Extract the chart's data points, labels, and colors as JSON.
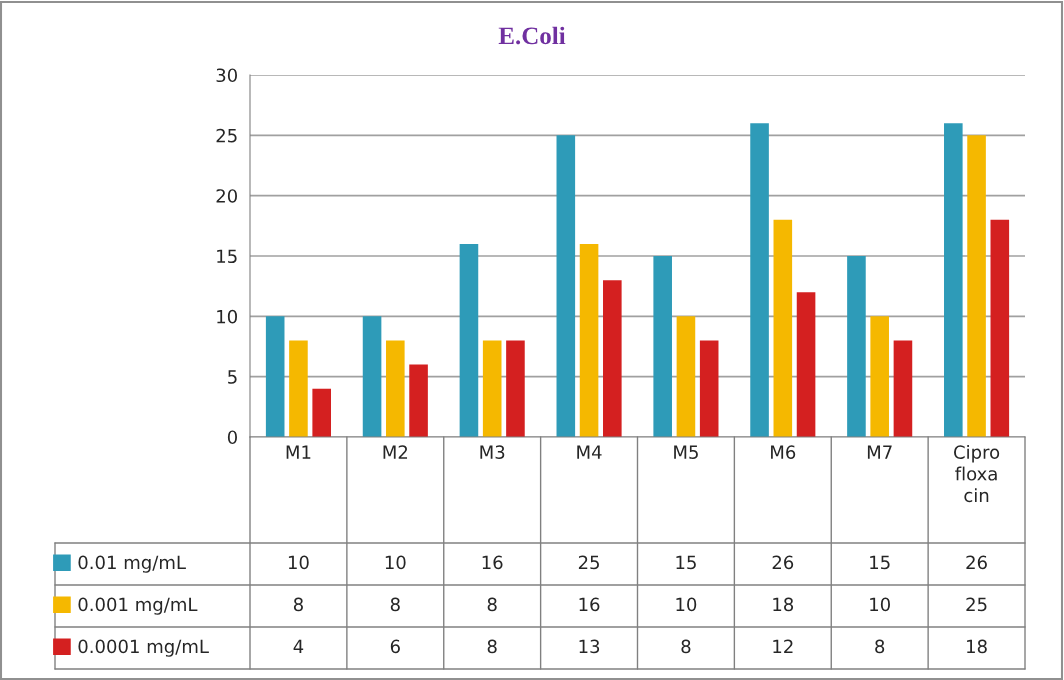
{
  "chart_data": {
    "type": "bar",
    "title": "E.Coli",
    "categories": [
      "M1",
      "M2",
      "M3",
      "M4",
      "M5",
      "M6",
      "M7",
      "Cipro floxa cin"
    ],
    "series": [
      {
        "name": "0.01 mg/mL",
        "color": "#2e9bb8",
        "values": [
          10,
          10,
          16,
          25,
          15,
          26,
          15,
          26
        ]
      },
      {
        "name": "0.001 mg/mL",
        "color": "#f5b800",
        "values": [
          8,
          8,
          8,
          16,
          10,
          18,
          10,
          25
        ]
      },
      {
        "name": "0.0001 mg/mL",
        "color": "#d42020",
        "values": [
          4,
          6,
          8,
          13,
          8,
          12,
          8,
          18
        ]
      }
    ],
    "ylim": [
      0,
      30
    ],
    "yticks": [
      0,
      5,
      10,
      15,
      20,
      25,
      30
    ],
    "grid": "y",
    "legend": "bottom",
    "data_labels": true
  }
}
